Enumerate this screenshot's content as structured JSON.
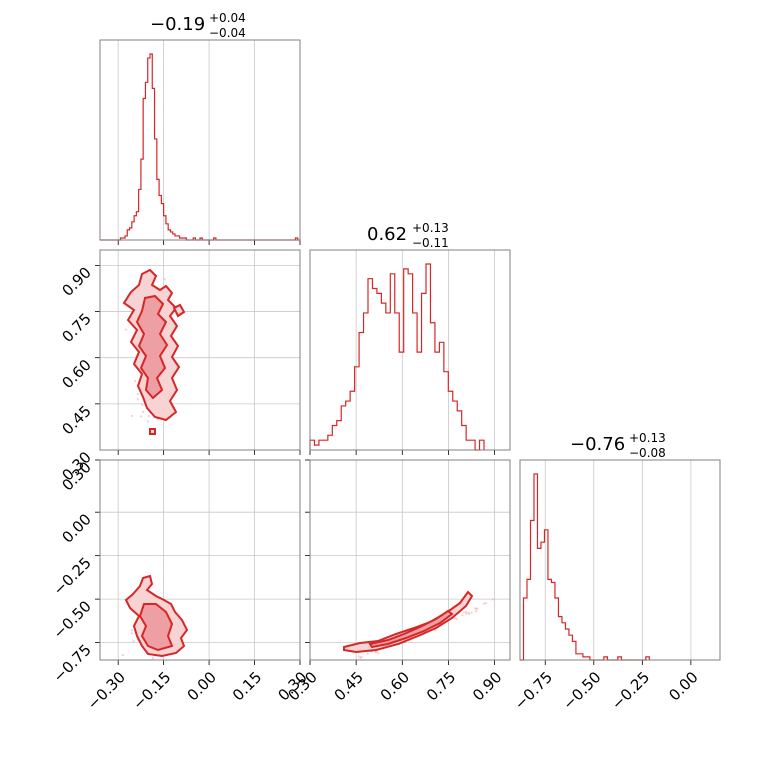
{
  "chart_data": {
    "type": "corner",
    "params": [
      {
        "title_value": "−0.19",
        "title_plus": "+0.04",
        "title_minus": "−0.04",
        "range": [
          -0.36,
          0.3
        ],
        "ticks": [
          "−0.30",
          "−0.15",
          "0.00",
          "0.15",
          "0.30"
        ],
        "tick_values": [
          -0.3,
          -0.15,
          0.0,
          0.15,
          0.3
        ]
      },
      {
        "title_value": "0.62",
        "title_plus": "+0.13",
        "title_minus": "−0.11",
        "range": [
          0.3,
          0.95
        ],
        "ticks": [
          "0.30",
          "0.45",
          "0.60",
          "0.75",
          "0.90"
        ],
        "tick_values": [
          0.3,
          0.45,
          0.6,
          0.75,
          0.9
        ]
      },
      {
        "title_value": "−0.76",
        "title_plus": "+0.13",
        "title_minus": "−0.08",
        "range": [
          -0.88,
          0.15
        ],
        "ticks": [
          "−0.75",
          "−0.50",
          "−0.25",
          "0.00"
        ],
        "tick_values": [
          -0.75,
          -0.5,
          -0.25,
          0.0
        ],
        "left_ticks": [
          "0.30",
          "0.00",
          "−0.25",
          "−0.50",
          "−0.75"
        ],
        "left_tick_values": [
          0.3,
          0.0,
          -0.25,
          -0.5,
          -0.75
        ]
      }
    ],
    "histograms": [
      {
        "edges_from": -0.36,
        "bin": 0.0075,
        "counts": [
          0,
          0,
          0,
          0,
          0,
          0,
          0,
          0,
          0,
          1,
          1,
          2,
          5,
          6,
          9,
          12,
          14,
          25,
          40,
          70,
          78,
          90,
          92,
          75,
          50,
          30,
          22,
          18,
          12,
          8,
          5,
          4,
          3,
          2,
          2,
          1,
          1,
          1,
          0,
          0,
          0,
          1,
          0,
          0,
          1,
          0,
          0,
          0,
          0,
          0,
          1,
          0,
          0,
          0,
          0,
          0,
          0,
          0,
          0,
          0,
          0,
          0,
          0,
          0,
          0,
          0,
          0,
          0,
          0,
          0,
          0,
          0,
          0,
          0,
          0,
          0,
          0,
          0,
          0,
          0,
          0,
          0,
          0,
          0,
          0,
          0,
          1,
          0
        ]
      },
      {
        "edges_from": 0.3,
        "bin": 0.0145,
        "counts": [
          2,
          1,
          2,
          2,
          3,
          5,
          6,
          9,
          10,
          12,
          17,
          24,
          28,
          35,
          33,
          32,
          30,
          28,
          36,
          28,
          20,
          37,
          36,
          28,
          20,
          32,
          38,
          26,
          20,
          22,
          16,
          12,
          10,
          8,
          5,
          2,
          2,
          0,
          2
        ]
      },
      {
        "edges_from": -0.88,
        "bin": 0.018,
        "counts": [
          0,
          20,
          26,
          45,
          60,
          36,
          38,
          42,
          26,
          25,
          20,
          14,
          12,
          10,
          8,
          6,
          2,
          2,
          1,
          1,
          0,
          0,
          0,
          0,
          1,
          0,
          0,
          0,
          1,
          0,
          0,
          0,
          0,
          0,
          0,
          0,
          1
        ]
      }
    ],
    "color": "#d62728",
    "grid": true
  }
}
